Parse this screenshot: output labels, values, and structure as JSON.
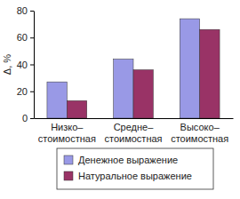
{
  "chart_data": {
    "type": "bar",
    "y_label": "Δ, %",
    "categories": [
      "Низко–\nстоимостная",
      "Средне–\nстоимостная",
      "Высоко–\nстоимостная"
    ],
    "series": [
      {
        "name": "Денежное выражение",
        "color": "#9999e6",
        "values": [
          27,
          44,
          74
        ]
      },
      {
        "name": "Натуральное выражение",
        "color": "#993366",
        "values": [
          13,
          36,
          66
        ]
      }
    ],
    "ylim": [
      0,
      80
    ],
    "yticks": [
      0,
      20,
      40,
      60,
      80
    ],
    "grid": false,
    "legend": "bottom"
  }
}
